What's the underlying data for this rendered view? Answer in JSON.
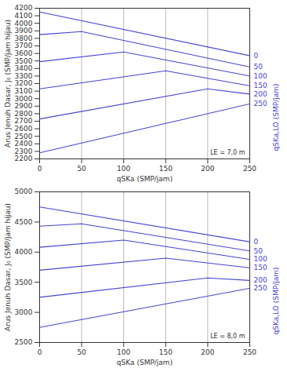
{
  "chart_data": [
    {
      "type": "line",
      "xlabel": "qSKa (SMP/jam)",
      "ylabel": "Arus Jenuh Dasar, J₀ (SMP/jam hijau)",
      "series_title": "qSKa,LO (SMP/jam)",
      "annotation": "LE = 7,0 m",
      "xlim": [
        0,
        250
      ],
      "xticks": [
        0,
        50,
        100,
        150,
        200,
        250
      ],
      "ylim": [
        2200,
        4200
      ],
      "yticks": [
        2200,
        2300,
        2400,
        2500,
        2600,
        2700,
        2800,
        2900,
        3000,
        3100,
        3200,
        3300,
        3400,
        3500,
        3600,
        3700,
        3800,
        3900,
        4000,
        4100,
        4200
      ],
      "grid": "x",
      "series": [
        {
          "name": "0",
          "color": "#4343d9",
          "x": [
            0,
            250
          ],
          "values": [
            4150,
            3570
          ]
        },
        {
          "name": "50",
          "color": "#4343d9",
          "x": [
            0,
            50,
            250
          ],
          "values": [
            3850,
            3890,
            3420
          ]
        },
        {
          "name": "100",
          "color": "#4343d9",
          "x": [
            0,
            100,
            250
          ],
          "values": [
            3490,
            3620,
            3300
          ]
        },
        {
          "name": "150",
          "color": "#4343d9",
          "x": [
            0,
            150,
            250
          ],
          "values": [
            3130,
            3370,
            3170
          ]
        },
        {
          "name": "200",
          "color": "#4343d9",
          "x": [
            0,
            200,
            250
          ],
          "values": [
            2730,
            3130,
            3060
          ]
        },
        {
          "name": "250",
          "color": "#4343d9",
          "x": [
            0,
            250
          ],
          "values": [
            2280,
            2930
          ]
        }
      ]
    },
    {
      "type": "line",
      "xlabel": "qSKa (SMP/jam)",
      "ylabel": "Arus Jenuh Dasar, J₀ (SMP/jam hijau)",
      "series_title": "qSKa,LO (SMP/jam)",
      "annotation": "LE = 8,0 m",
      "xlim": [
        0,
        250
      ],
      "xticks": [
        0,
        50,
        100,
        150,
        200,
        250
      ],
      "ylim": [
        2500,
        5000
      ],
      "yticks": [
        2500,
        3000,
        3500,
        4000,
        4500,
        5000
      ],
      "grid": "x",
      "series": [
        {
          "name": "0",
          "color": "#4343d9",
          "x": [
            0,
            250
          ],
          "values": [
            4750,
            4170
          ]
        },
        {
          "name": "50",
          "color": "#4343d9",
          "x": [
            0,
            50,
            250
          ],
          "values": [
            4430,
            4470,
            4020
          ]
        },
        {
          "name": "100",
          "color": "#4343d9",
          "x": [
            0,
            100,
            250
          ],
          "values": [
            4080,
            4200,
            3880
          ]
        },
        {
          "name": "150",
          "color": "#4343d9",
          "x": [
            0,
            150,
            250
          ],
          "values": [
            3700,
            3900,
            3740
          ]
        },
        {
          "name": "200",
          "color": "#4343d9",
          "x": [
            0,
            200,
            250
          ],
          "values": [
            3250,
            3570,
            3530
          ]
        },
        {
          "name": "250",
          "color": "#4343d9",
          "x": [
            0,
            250
          ],
          "values": [
            2750,
            3400
          ]
        }
      ]
    }
  ]
}
